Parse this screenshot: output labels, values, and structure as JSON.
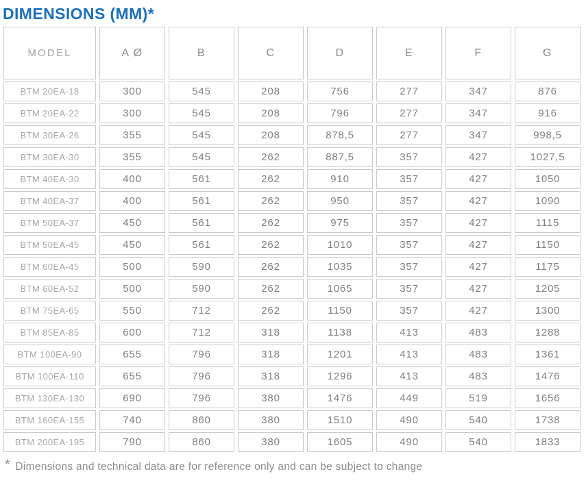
{
  "title": "DIMENSIONS (MM)*",
  "colors": {
    "title_blue": "#1c70b7",
    "cell_border": "#c9c9c9",
    "model_cell_bg": "#dbdbdb",
    "model_cell_border": "#c4c4c4",
    "model_cell_text": "#a6a6a6",
    "header_text": "#8a8a8a",
    "data_text": "#7e7e7e",
    "footnote_text": "#8a8a8a"
  },
  "table": {
    "model_header": "MODEL",
    "columns": [
      "A Ø",
      "B",
      "C",
      "D",
      "E",
      "F",
      "G"
    ],
    "rows": [
      {
        "model": "BTM 20EA-18",
        "values": [
          "300",
          "545",
          "208",
          "756",
          "277",
          "347",
          "876"
        ]
      },
      {
        "model": "BTM 20EA-22",
        "values": [
          "300",
          "545",
          "208",
          "796",
          "277",
          "347",
          "916"
        ]
      },
      {
        "model": "BTM 30EA-26",
        "values": [
          "355",
          "545",
          "208",
          "878,5",
          "277",
          "347",
          "998,5"
        ]
      },
      {
        "model": "BTM 30EA-30",
        "values": [
          "355",
          "545",
          "262",
          "887,5",
          "357",
          "427",
          "1027,5"
        ]
      },
      {
        "model": "BTM 40EA-30",
        "values": [
          "400",
          "561",
          "262",
          "910",
          "357",
          "427",
          "1050"
        ]
      },
      {
        "model": "BTM 40EA-37",
        "values": [
          "400",
          "561",
          "262",
          "950",
          "357",
          "427",
          "1090"
        ]
      },
      {
        "model": "BTM 50EA-37",
        "values": [
          "450",
          "561",
          "262",
          "975",
          "357",
          "427",
          "1115"
        ]
      },
      {
        "model": "BTM 50EA-45",
        "values": [
          "450",
          "561",
          "262",
          "1010",
          "357",
          "427",
          "1150"
        ]
      },
      {
        "model": "BTM 60EA-45",
        "values": [
          "500",
          "590",
          "262",
          "1035",
          "357",
          "427",
          "1175"
        ]
      },
      {
        "model": "BTM 60EA-52",
        "values": [
          "500",
          "590",
          "262",
          "1065",
          "357",
          "427",
          "1205"
        ]
      },
      {
        "model": "BTM 75EA-65",
        "values": [
          "550",
          "712",
          "262",
          "1150",
          "357",
          "427",
          "1300"
        ]
      },
      {
        "model": "BTM 85EA-85",
        "values": [
          "600",
          "712",
          "318",
          "1138",
          "413",
          "483",
          "1288"
        ]
      },
      {
        "model": "BTM 100EA-90",
        "values": [
          "655",
          "796",
          "318",
          "1201",
          "413",
          "483",
          "1361"
        ]
      },
      {
        "model": "BTM 100EA-110",
        "values": [
          "655",
          "796",
          "318",
          "1296",
          "413",
          "483",
          "1476"
        ]
      },
      {
        "model": "BTM 130EA-130",
        "values": [
          "690",
          "796",
          "380",
          "1476",
          "449",
          "519",
          "1656"
        ]
      },
      {
        "model": "BTM 160EA-155",
        "values": [
          "740",
          "860",
          "380",
          "1510",
          "490",
          "540",
          "1738"
        ]
      },
      {
        "model": "BTM 200EA-195",
        "values": [
          "790",
          "860",
          "380",
          "1605",
          "490",
          "540",
          "1833"
        ]
      }
    ]
  },
  "footnote": {
    "marker": "*",
    "text": "Dimensions and technical data are for reference only and can be subject to change"
  }
}
